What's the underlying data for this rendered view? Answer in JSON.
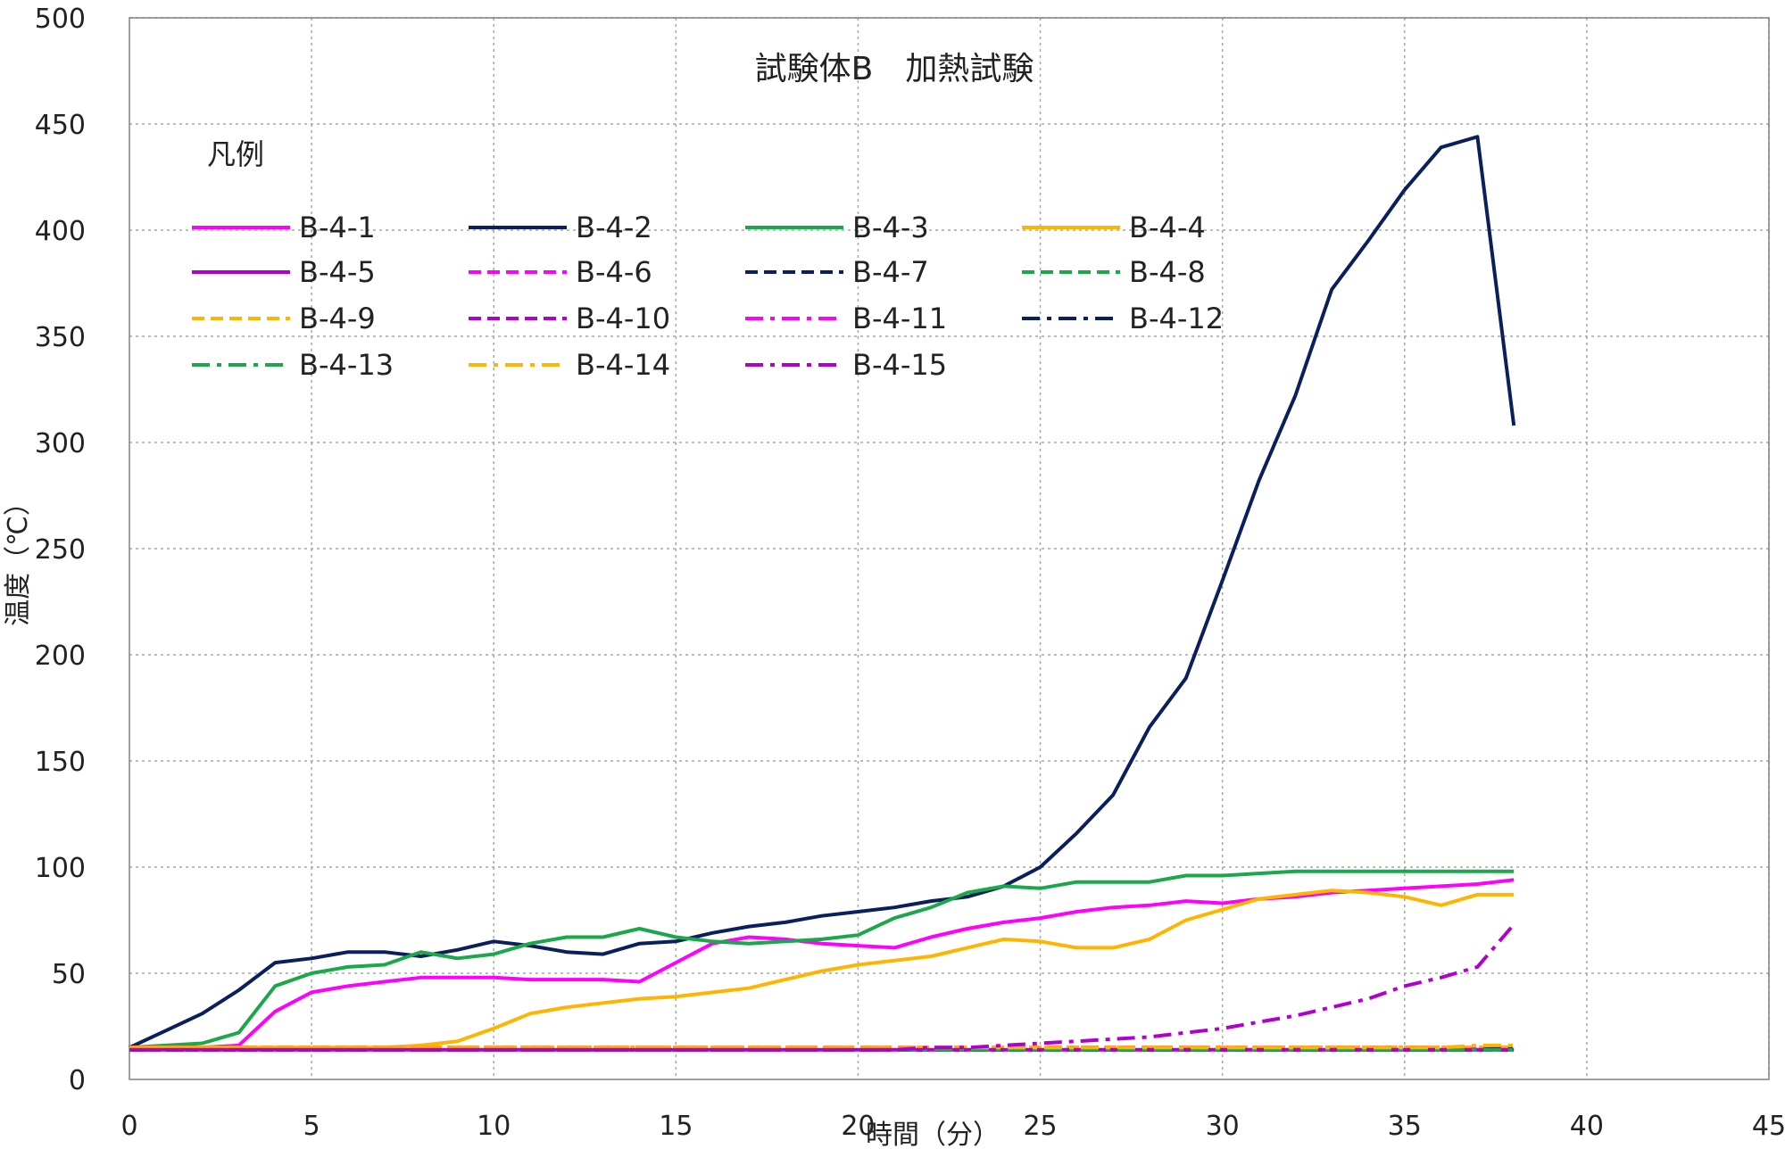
{
  "chart_data": {
    "type": "line",
    "title": "試験体B　加熱試験",
    "xlabel": "時間（分）",
    "ylabel": "温度（℃）",
    "legend_title": "凡例",
    "legend_placement": "top-left",
    "grid": true,
    "xlim": [
      0,
      45
    ],
    "ylim": [
      0,
      500
    ],
    "xticks": [
      0,
      5,
      10,
      15,
      20,
      25,
      30,
      35,
      40,
      45
    ],
    "yticks": [
      0,
      50,
      100,
      150,
      200,
      250,
      300,
      350,
      400,
      450,
      500
    ],
    "x": [
      0,
      1,
      2,
      3,
      4,
      5,
      6,
      7,
      8,
      9,
      10,
      11,
      12,
      13,
      14,
      15,
      16,
      17,
      18,
      19,
      20,
      21,
      22,
      23,
      24,
      25,
      26,
      27,
      28,
      29,
      30,
      31,
      32,
      33,
      34,
      35,
      36,
      37,
      38
    ],
    "series": [
      {
        "name": "B-4-1",
        "color": "#ff00ff",
        "style": "solid",
        "values": [
          15,
          15,
          15,
          16,
          32,
          41,
          44,
          46,
          48,
          48,
          48,
          47,
          47,
          47,
          46,
          55,
          64,
          67,
          66,
          64,
          63,
          62,
          67,
          71,
          74,
          76,
          79,
          81,
          82,
          84,
          83,
          85,
          86,
          88,
          89,
          90,
          91,
          92,
          94
        ]
      },
      {
        "name": "B-4-2",
        "color": "#0b1f5c",
        "style": "solid",
        "values": [
          15,
          23,
          31,
          42,
          55,
          57,
          60,
          60,
          58,
          61,
          65,
          63,
          60,
          59,
          64,
          65,
          69,
          72,
          74,
          77,
          79,
          81,
          84,
          86,
          91,
          100,
          116,
          134,
          166,
          189,
          235,
          282,
          322,
          372,
          395,
          419,
          439,
          444,
          308
        ]
      },
      {
        "name": "B-4-3",
        "color": "#1aa84a",
        "style": "solid",
        "values": [
          15,
          16,
          17,
          22,
          44,
          50,
          53,
          54,
          60,
          57,
          59,
          64,
          67,
          67,
          71,
          67,
          65,
          64,
          65,
          66,
          68,
          76,
          81,
          88,
          91,
          90,
          93,
          93,
          93,
          96,
          96,
          97,
          98,
          98,
          98,
          98,
          98,
          98,
          98
        ]
      },
      {
        "name": "B-4-4",
        "color": "#ffb400",
        "style": "solid",
        "values": [
          15,
          15,
          15,
          15,
          15,
          15,
          15,
          15,
          16,
          18,
          24,
          31,
          34,
          36,
          38,
          39,
          41,
          43,
          47,
          51,
          54,
          56,
          58,
          62,
          66,
          65,
          62,
          62,
          66,
          75,
          80,
          85,
          87,
          89,
          88,
          86,
          82,
          87,
          87
        ]
      },
      {
        "name": "B-4-5",
        "color": "#b000d0",
        "style": "solid",
        "values": [
          14,
          14,
          14,
          14,
          14,
          14,
          14,
          14,
          14,
          14,
          14,
          14,
          14,
          14,
          14,
          14,
          14,
          14,
          14,
          14,
          14,
          14,
          14,
          14,
          14,
          14,
          14,
          14,
          14,
          14,
          14,
          14,
          14,
          14,
          14,
          14,
          14,
          14,
          14
        ]
      },
      {
        "name": "B-4-6",
        "color": "#ff00ff",
        "style": "dash",
        "values": [
          15,
          15,
          15,
          15,
          15,
          15,
          15,
          15,
          15,
          15,
          15,
          15,
          15,
          15,
          15,
          15,
          15,
          15,
          15,
          15,
          15,
          15,
          15,
          15,
          15,
          15,
          15,
          15,
          15,
          15,
          15,
          15,
          15,
          15,
          15,
          15,
          15,
          15,
          15
        ]
      },
      {
        "name": "B-4-7",
        "color": "#0b1f5c",
        "style": "dash",
        "values": [
          14,
          14,
          14,
          14,
          14,
          14,
          14,
          14,
          14,
          14,
          14,
          14,
          14,
          14,
          14,
          14,
          14,
          14,
          14,
          14,
          14,
          14,
          14,
          14,
          14,
          14,
          14,
          14,
          14,
          14,
          14,
          14,
          14,
          14,
          14,
          14,
          14,
          14,
          14
        ]
      },
      {
        "name": "B-4-8",
        "color": "#1aa84a",
        "style": "dash",
        "values": [
          14,
          14,
          14,
          14,
          14,
          14,
          14,
          14,
          14,
          14,
          14,
          14,
          14,
          14,
          14,
          14,
          14,
          14,
          14,
          14,
          14,
          14,
          14,
          14,
          14,
          14,
          14,
          14,
          14,
          14,
          14,
          14,
          14,
          14,
          14,
          14,
          14,
          14,
          14
        ]
      },
      {
        "name": "B-4-9",
        "color": "#ffb400",
        "style": "dash",
        "values": [
          15,
          15,
          15,
          15,
          15,
          15,
          15,
          15,
          15,
          15,
          15,
          15,
          15,
          15,
          15,
          15,
          15,
          15,
          15,
          15,
          15,
          15,
          15,
          15,
          15,
          15,
          15,
          15,
          15,
          15,
          15,
          15,
          15,
          15,
          15,
          15,
          15,
          15,
          15
        ]
      },
      {
        "name": "B-4-10",
        "color": "#b000d0",
        "style": "dash",
        "values": [
          14,
          14,
          14,
          14,
          14,
          14,
          14,
          14,
          14,
          14,
          14,
          14,
          14,
          14,
          14,
          14,
          14,
          14,
          14,
          14,
          14,
          14,
          14,
          14,
          14,
          14,
          14,
          14,
          14,
          14,
          14,
          14,
          14,
          14,
          14,
          14,
          14,
          14,
          14
        ]
      },
      {
        "name": "B-4-11",
        "color": "#ff00ff",
        "style": "dashdot",
        "values": [
          15,
          15,
          15,
          15,
          15,
          15,
          15,
          15,
          15,
          15,
          15,
          15,
          15,
          15,
          15,
          15,
          15,
          15,
          15,
          15,
          15,
          15,
          15,
          15,
          15,
          15,
          15,
          15,
          15,
          15,
          15,
          15,
          15,
          15,
          15,
          15,
          15,
          15,
          15
        ]
      },
      {
        "name": "B-4-12",
        "color": "#0b1f5c",
        "style": "dashdot",
        "values": [
          14,
          14,
          14,
          14,
          14,
          14,
          14,
          14,
          14,
          14,
          14,
          14,
          14,
          14,
          14,
          14,
          14,
          14,
          14,
          14,
          14,
          14,
          14,
          14,
          14,
          14,
          14,
          14,
          14,
          14,
          14,
          14,
          14,
          14,
          14,
          14,
          14,
          14,
          15
        ]
      },
      {
        "name": "B-4-13",
        "color": "#1aa84a",
        "style": "dashdot",
        "values": [
          14,
          14,
          14,
          14,
          14,
          14,
          14,
          14,
          14,
          14,
          14,
          14,
          14,
          14,
          14,
          14,
          14,
          14,
          14,
          14,
          14,
          14,
          14,
          14,
          14,
          14,
          14,
          14,
          14,
          14,
          14,
          14,
          14,
          14,
          14,
          14,
          14,
          14,
          14
        ]
      },
      {
        "name": "B-4-14",
        "color": "#ffb400",
        "style": "dashdot",
        "values": [
          15,
          15,
          15,
          15,
          15,
          15,
          15,
          15,
          15,
          15,
          15,
          15,
          15,
          15,
          15,
          15,
          15,
          15,
          15,
          15,
          15,
          15,
          15,
          15,
          15,
          15,
          15,
          15,
          15,
          15,
          15,
          15,
          15,
          15,
          15,
          15,
          15,
          16,
          16
        ]
      },
      {
        "name": "B-4-15",
        "color": "#b000d0",
        "style": "dashdot",
        "values": [
          14,
          14,
          14,
          14,
          14,
          14,
          14,
          14,
          14,
          14,
          14,
          14,
          14,
          14,
          14,
          14,
          14,
          14,
          14,
          14,
          14,
          14,
          15,
          15,
          16,
          17,
          18,
          19,
          20,
          22,
          24,
          27,
          30,
          34,
          38,
          44,
          48,
          53,
          73
        ]
      }
    ]
  }
}
